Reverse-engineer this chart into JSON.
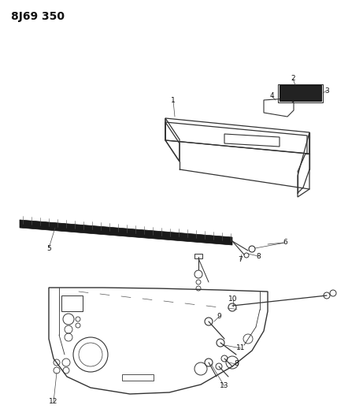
{
  "title": "8J69 350",
  "background_color": "#ffffff",
  "line_color": "#333333",
  "figsize": [
    4.28,
    5.33
  ],
  "dpi": 100
}
